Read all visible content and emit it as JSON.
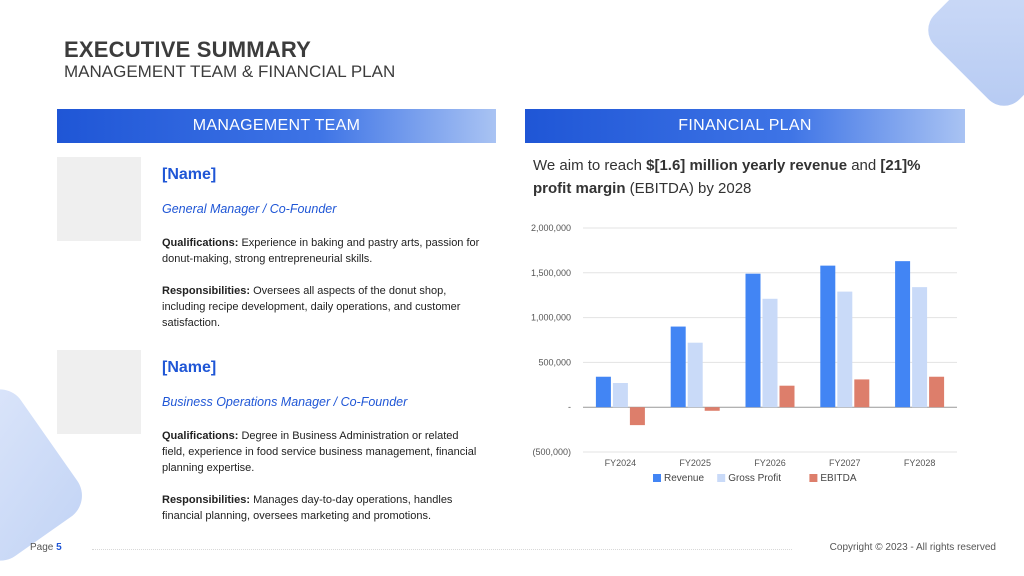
{
  "header": {
    "title": "EXECUTIVE SUMMARY",
    "subtitle": "MANAGEMENT TEAM & FINANCIAL PLAN"
  },
  "management": {
    "heading": "MANAGEMENT TEAM",
    "members": [
      {
        "name": "[Name]",
        "role": "General Manager / Co-Founder",
        "qualifications_label": "Qualifications:",
        "qualifications": " Experience in baking and pastry arts, passion for donut-making, strong entrepreneurial skills.",
        "responsibilities_label": "Responsibilities:",
        "responsibilities": " Oversees all aspects of the donut shop, including recipe development, daily operations, and customer satisfaction."
      },
      {
        "name": "[Name]",
        "role": "Business Operations Manager / Co-Founder",
        "qualifications_label": "Qualifications:",
        "qualifications": " Degree in Business Administration or related field, experience in food service business management, financial planning expertise.",
        "responsibilities_label": "Responsibilities:",
        "responsibilities": " Manages day-to-day operations, handles financial planning, oversees marketing and promotions."
      }
    ]
  },
  "financial": {
    "heading": "FINANCIAL PLAN",
    "text_1": "We aim to reach ",
    "text_2": "$[1.6] million yearly revenue",
    "text_3": " and ",
    "text_4": "[21]% profit margin",
    "text_5": " (EBITDA) by 2028"
  },
  "chart_data": {
    "type": "bar",
    "categories": [
      "FY2024",
      "FY2025",
      "FY2026",
      "FY2027",
      "FY2028"
    ],
    "series": [
      {
        "name": "Revenue",
        "color": "#4285f4",
        "values": [
          340000,
          900000,
          1490000,
          1580000,
          1630000
        ]
      },
      {
        "name": "Gross Profit",
        "color": "#c9daf8",
        "values": [
          270000,
          720000,
          1210000,
          1290000,
          1340000
        ]
      },
      {
        "name": "EBITDA",
        "color": "#dd7e6b",
        "values": [
          -200000,
          -40000,
          240000,
          310000,
          340000
        ]
      }
    ],
    "ylim": [
      -500000,
      2000000
    ],
    "yticks": [
      {
        "value": 2000000,
        "label": "2,000,000"
      },
      {
        "value": 1500000,
        "label": "1,500,000"
      },
      {
        "value": 1000000,
        "label": "1,000,000"
      },
      {
        "value": 500000,
        "label": "500,000"
      },
      {
        "value": 0,
        "label": "-"
      },
      {
        "value": -500000,
        "label": "(500,000)"
      }
    ],
    "grid": true,
    "legend": "bottom"
  },
  "footer": {
    "page_label": "Page ",
    "page_number": "5",
    "copyright": "Copyright © 2023 - All rights reserved"
  }
}
